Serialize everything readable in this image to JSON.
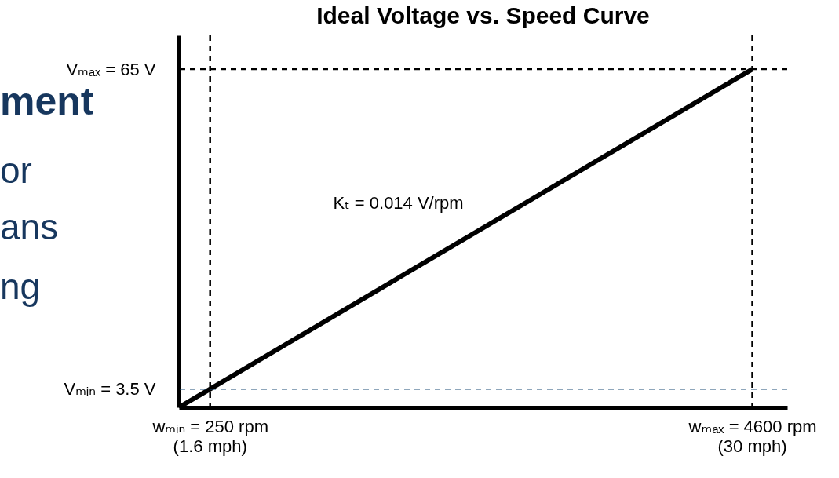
{
  "chart_data": {
    "type": "line",
    "title": "Ideal Voltage vs. Speed Curve",
    "series": [
      {
        "color": "#000000",
        "x": [
          0,
          4600
        ],
        "values": [
          0,
          65
        ]
      }
    ],
    "xlim": [
      0,
      4880
    ],
    "ylim": [
      0,
      71.5
    ],
    "xticks": [
      {
        "value": 250,
        "label": "wₘᵢₙ = 250 rpm"
      },
      {
        "value": 4600,
        "label": "wₘₐₓ = 4600 rpm"
      }
    ],
    "yticks": [
      {
        "value": 3.5,
        "label": "Vₘᵢₙ  = 3.5 V"
      },
      {
        "value": 65,
        "label": "Vₘₐₓ = 65 V"
      }
    ],
    "ref_lines": [
      {
        "axis": "x",
        "value": 250,
        "color": "#000000",
        "line_style": "dashed"
      },
      {
        "axis": "x",
        "value": 4600,
        "color": "#000000",
        "line_style": "dashed"
      },
      {
        "axis": "y",
        "value": 65,
        "color": "#000000",
        "line_style": "dashed"
      },
      {
        "axis": "y",
        "value": 3.5,
        "color": "#1f4e79",
        "line_style": "dashed"
      }
    ],
    "annotations": [
      {
        "text": "Kₜ  = 0.014 V/rpm",
        "x": 2000,
        "y": 28.3
      },
      "(1.6 mph)",
      "(30 mph)",
      "ment",
      "or",
      "ans",
      "ng"
    ],
    "grid": false,
    "marker": "none",
    "line_style": "solid"
  }
}
